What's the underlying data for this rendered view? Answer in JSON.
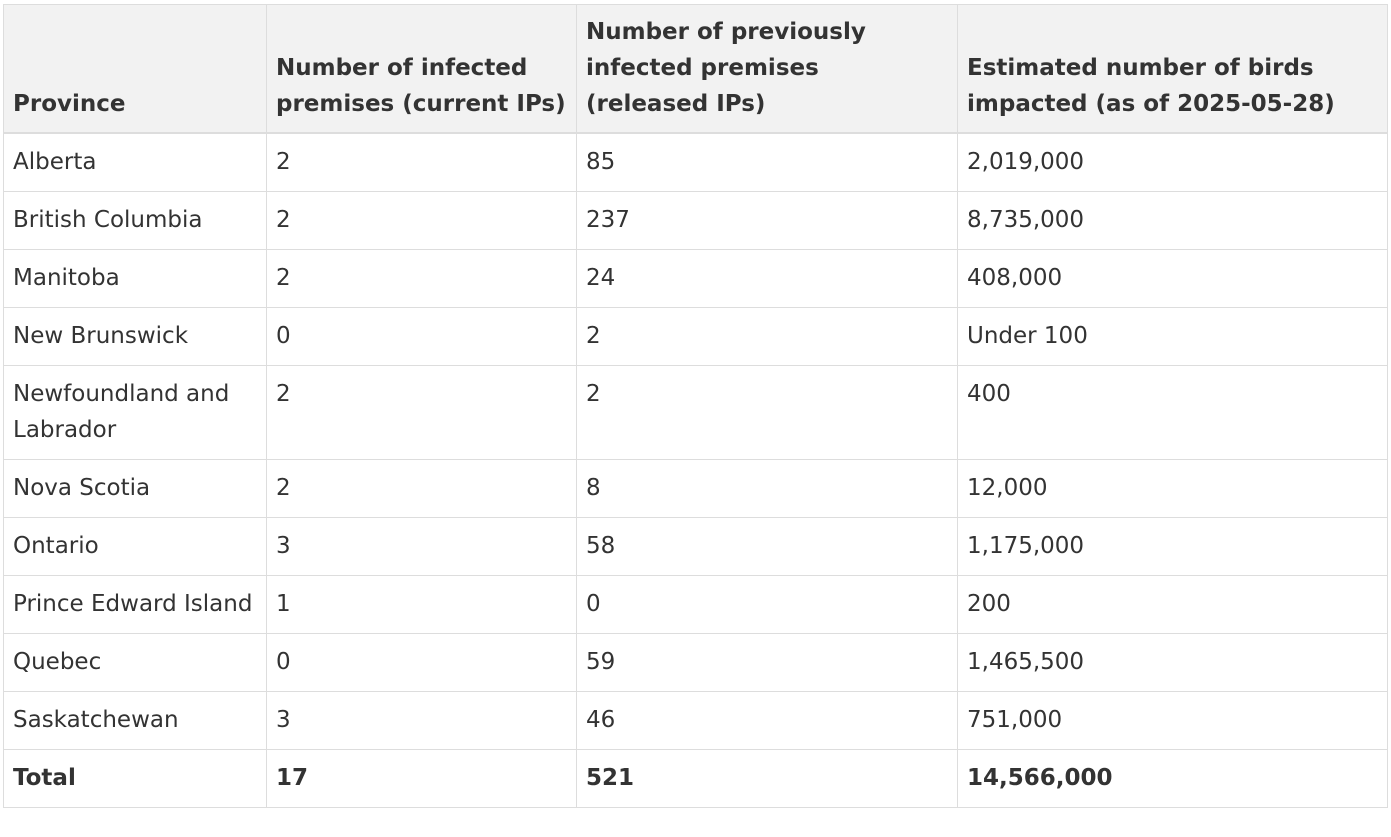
{
  "table": {
    "headers": [
      "Province",
      "Number of infected premises (current IPs)",
      "Number of previously infected premises (released IPs)",
      "Estimated number of birds impacted (as of 2025-05-28)"
    ],
    "rows": [
      [
        "Alberta",
        "2",
        "85",
        "2,019,000"
      ],
      [
        "British Columbia",
        "2",
        "237",
        "8,735,000"
      ],
      [
        "Manitoba",
        "2",
        "24",
        "408,000"
      ],
      [
        "New Brunswick",
        "0",
        "2",
        "Under 100"
      ],
      [
        "Newfoundland and Labrador",
        "2",
        "2",
        "400"
      ],
      [
        "Nova Scotia",
        "2",
        "8",
        "12,000"
      ],
      [
        "Ontario",
        "3",
        "58",
        "1,175,000"
      ],
      [
        "Prince Edward Island",
        "1",
        "0",
        "200"
      ],
      [
        "Quebec",
        "0",
        "59",
        "1,465,500"
      ],
      [
        "Saskatchewan",
        "3",
        "46",
        "751,000"
      ]
    ],
    "total": [
      "Total",
      "17",
      "521",
      "14,566,000"
    ]
  },
  "colors": {
    "header_background": "#f2f2f2",
    "border": "#dddddd",
    "text": "#333333"
  }
}
